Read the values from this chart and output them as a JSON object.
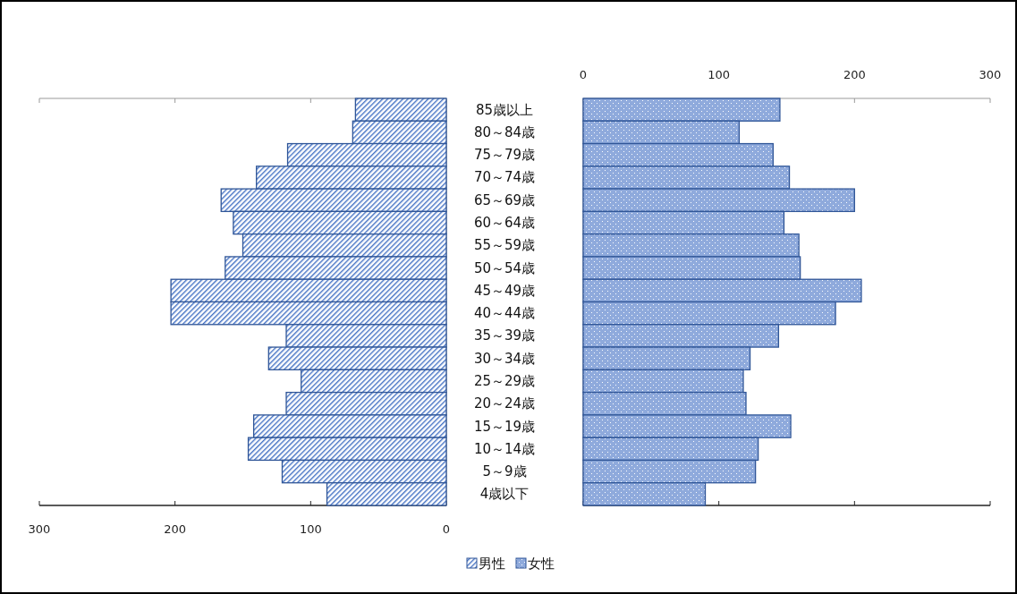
{
  "chart_data": [
    {
      "type": "bar",
      "orientation": "horizontal",
      "categories": [
        "85歳以上",
        "80～84歳",
        "75～79歳",
        "70～74歳",
        "65～69歳",
        "60～64歳",
        "55～59歳",
        "50～54歳",
        "45～49歳",
        "40～44歳",
        "35～39歳",
        "30～34歳",
        "25～29歳",
        "20～24歳",
        "15～19歳",
        "10～14歳",
        "5～9歳",
        "4歳以下"
      ],
      "series": [
        {
          "name": "男性",
          "color": "#2f5597",
          "values": [
            67,
            69,
            117,
            140,
            166,
            157,
            150,
            163,
            203,
            203,
            118,
            131,
            107,
            118,
            142,
            146,
            121,
            88
          ]
        }
      ],
      "xlim": [
        300,
        0
      ],
      "xticks": [
        300,
        200,
        100,
        0
      ],
      "legend": "bottom"
    },
    {
      "type": "bar",
      "orientation": "horizontal",
      "series": [
        {
          "name": "女性",
          "color": "#2f5597",
          "values": [
            145,
            115,
            140,
            152,
            200,
            148,
            159,
            160,
            205,
            186,
            144,
            123,
            118,
            120,
            153,
            129,
            127,
            90
          ]
        }
      ],
      "xlim": [
        0,
        300
      ],
      "xticks": [
        0,
        100,
        200,
        300
      ],
      "tick_labels": "x",
      "legend": "bottom"
    }
  ]
}
